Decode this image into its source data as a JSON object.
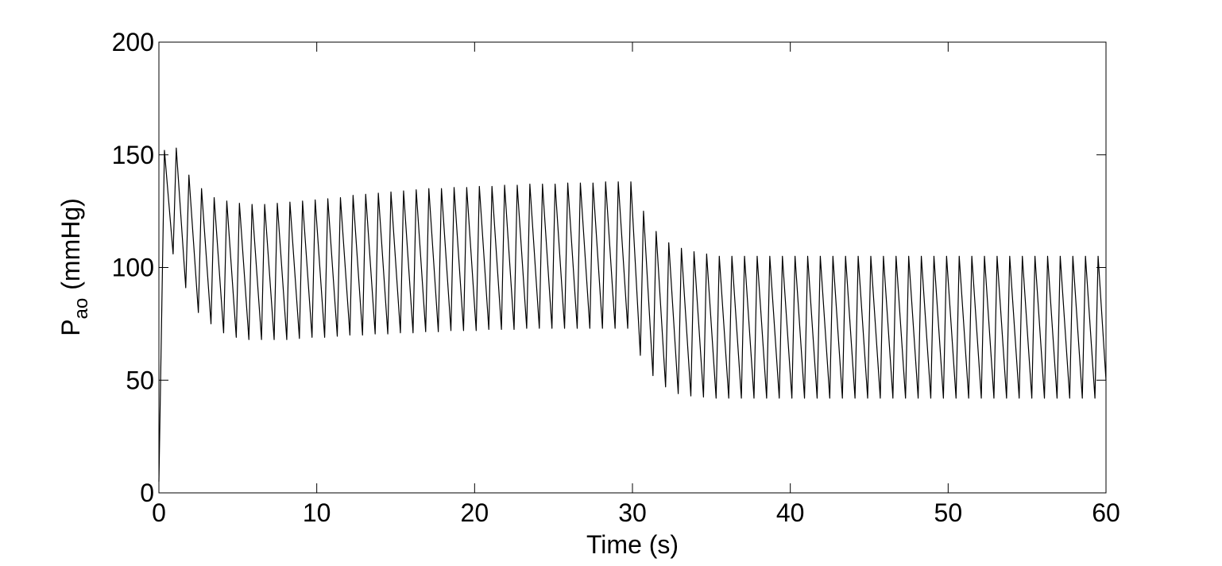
{
  "chart_data": {
    "type": "line",
    "xlabel": "Time (s)",
    "ylabel": {
      "main": "P",
      "sub": "ao",
      "unit": "(mmHg)"
    },
    "color": "#000000",
    "xlim": [
      0,
      60
    ],
    "xticks": [
      0,
      10,
      20,
      30,
      40,
      50,
      60
    ],
    "ylim": [
      0,
      200
    ],
    "yticks": [
      0,
      50,
      100,
      150,
      200
    ],
    "grid": false,
    "x": [
      0,
      0.35,
      0.9,
      1.1,
      1.7,
      1.9,
      2.5,
      2.7,
      3.3,
      3.5,
      4.1,
      4.3,
      4.9,
      5.1,
      5.7,
      5.9,
      6.5,
      6.7,
      7.3,
      7.5,
      8.1,
      8.3,
      8.9,
      9.1,
      9.7,
      9.9,
      10.5,
      10.7,
      11.3,
      11.5,
      12.1,
      12.3,
      12.9,
      13.1,
      13.7,
      13.9,
      14.5,
      14.7,
      15.3,
      15.5,
      16.1,
      16.3,
      16.9,
      17.1,
      17.7,
      17.9,
      18.5,
      18.7,
      19.3,
      19.5,
      20.1,
      20.3,
      20.9,
      21.1,
      21.7,
      21.9,
      22.5,
      22.7,
      23.3,
      23.5,
      24.1,
      24.3,
      24.9,
      25.1,
      25.7,
      25.9,
      26.5,
      26.7,
      27.3,
      27.5,
      28.1,
      28.3,
      28.9,
      29.1,
      29.7,
      29.9,
      30.5,
      30.7,
      31.3,
      31.5,
      32.1,
      32.3,
      32.9,
      33.1,
      33.7,
      33.9,
      34.5,
      34.7,
      35.3,
      35.5,
      36.1,
      36.3,
      36.9,
      37.1,
      37.7,
      37.9,
      38.5,
      38.7,
      39.3,
      39.5,
      40.1,
      40.3,
      40.9,
      41.1,
      41.7,
      41.9,
      42.5,
      42.7,
      43.3,
      43.5,
      44.1,
      44.3,
      44.9,
      45.1,
      45.7,
      45.9,
      46.5,
      46.7,
      47.3,
      47.5,
      48.1,
      48.3,
      48.9,
      49.1,
      49.7,
      49.9,
      50.5,
      50.7,
      51.3,
      51.5,
      52.1,
      52.3,
      52.9,
      53.1,
      53.7,
      53.9,
      54.5,
      54.7,
      55.3,
      55.5,
      56.1,
      56.3,
      56.9,
      57.1,
      57.7,
      57.9,
      58.5,
      58.7,
      59.3,
      59.5,
      60
    ],
    "values": [
      5,
      152,
      106,
      153,
      91,
      141,
      80,
      135,
      75,
      131,
      71,
      129.5,
      69,
      128.5,
      68,
      128,
      68,
      128,
      68,
      128.5,
      68,
      129,
      68.5,
      129.5,
      69,
      130,
      69,
      130.5,
      69.5,
      131,
      70,
      132,
      70,
      132.5,
      70.5,
      133,
      70.5,
      133.5,
      71,
      134,
      71,
      134.5,
      71.5,
      135,
      71.5,
      135,
      72,
      135.5,
      72,
      135.5,
      72,
      136,
      72.5,
      136,
      72.5,
      136.5,
      72.5,
      136.5,
      73,
      137,
      73,
      137,
      73,
      137,
      73,
      137.5,
      73,
      137.5,
      73,
      137.5,
      73,
      138,
      73,
      138,
      73,
      138,
      61,
      125,
      52,
      116,
      47,
      111,
      44,
      108.5,
      43,
      107,
      42.5,
      106,
      42,
      105,
      42,
      105,
      42,
      105,
      42,
      105,
      42,
      105,
      42,
      105,
      42,
      105,
      42,
      105,
      42,
      105,
      42,
      105,
      42,
      105,
      42,
      105,
      42,
      105,
      42,
      105,
      42,
      105,
      42,
      105,
      42,
      105,
      42,
      105,
      42,
      105,
      42,
      105,
      42,
      105,
      42,
      105,
      42,
      105,
      42,
      105,
      42,
      105,
      42,
      105,
      42,
      105,
      42,
      105,
      42,
      105,
      42,
      105,
      42,
      105,
      50
    ]
  }
}
